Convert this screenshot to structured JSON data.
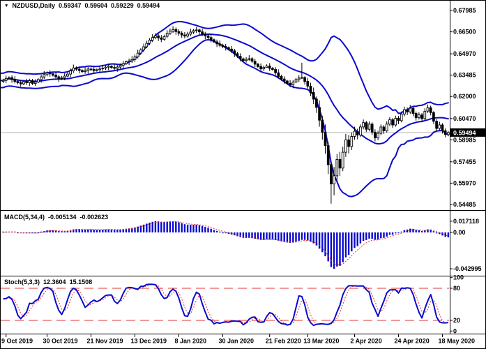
{
  "chart_data": {
    "type": "candlestick",
    "symbol": "NZDUSD",
    "timeframe": "Daily",
    "symbol_label": "NZDUSD,Daily",
    "ohlc_display": {
      "open": "0.59347",
      "high": "0.59604",
      "low": "0.59229",
      "close": "0.59494"
    },
    "current_price": 0.59494,
    "current_price_label": "0.59494",
    "y_axis": {
      "labels": [
        "0.67985",
        "0.66500",
        "0.64970",
        "0.63485",
        "0.62000",
        "0.60470",
        "0.58985",
        "0.57455",
        "0.55970",
        "0.54485"
      ]
    },
    "x_axis": {
      "labels": [
        {
          "text": "9 Oct 2019",
          "bar": 1
        },
        {
          "text": "30 Oct 2019",
          "bar": 15
        },
        {
          "text": "21 Nov 2019",
          "bar": 30
        },
        {
          "text": "13 Dec 2019",
          "bar": 45
        },
        {
          "text": "8 Jan 2020",
          "bar": 60
        },
        {
          "text": "30 Jan 2020",
          "bar": 75
        },
        {
          "text": "21 Feb 2020",
          "bar": 91
        },
        {
          "text": "13 Mar 2020",
          "bar": 104
        },
        {
          "text": "2 Apr 2020",
          "bar": 120
        },
        {
          "text": "24 Apr 2020",
          "bar": 135
        },
        {
          "text": "18 May 2020",
          "bar": 150
        }
      ]
    },
    "bollinger": {
      "period": 20,
      "deviation": 2
    },
    "candles": [
      [
        0.6305,
        0.6324,
        0.6294,
        0.6312
      ],
      [
        0.6312,
        0.6346,
        0.6294,
        0.6326
      ],
      [
        0.6326,
        0.634,
        0.6318,
        0.6331
      ],
      [
        0.6331,
        0.6347,
        0.6296,
        0.6318
      ],
      [
        0.6318,
        0.6342,
        0.6291,
        0.6305
      ],
      [
        0.6305,
        0.6316,
        0.6284,
        0.6296
      ],
      [
        0.6296,
        0.6314,
        0.6268,
        0.6288
      ],
      [
        0.6288,
        0.631,
        0.6279,
        0.6302
      ],
      [
        0.6302,
        0.6324,
        0.628,
        0.6296
      ],
      [
        0.6296,
        0.6324,
        0.6272,
        0.631
      ],
      [
        0.631,
        0.6322,
        0.628,
        0.6291
      ],
      [
        0.6291,
        0.632,
        0.6273,
        0.63
      ],
      [
        0.63,
        0.6327,
        0.6292,
        0.6318
      ],
      [
        0.6318,
        0.6352,
        0.6296,
        0.6336
      ],
      [
        0.6336,
        0.6376,
        0.6322,
        0.6352
      ],
      [
        0.6352,
        0.6375,
        0.634,
        0.6364
      ],
      [
        0.6364,
        0.6382,
        0.6338,
        0.6358
      ],
      [
        0.6358,
        0.6366,
        0.6339,
        0.6348
      ],
      [
        0.6348,
        0.637,
        0.6321,
        0.6337
      ],
      [
        0.6337,
        0.6351,
        0.6301,
        0.6325
      ],
      [
        0.6325,
        0.6343,
        0.6314,
        0.6331
      ],
      [
        0.6331,
        0.6362,
        0.6313,
        0.6342
      ],
      [
        0.6342,
        0.6365,
        0.6334,
        0.6356
      ],
      [
        0.6356,
        0.6394,
        0.6334,
        0.6378
      ],
      [
        0.6378,
        0.6422,
        0.6364,
        0.6398
      ],
      [
        0.6398,
        0.6409,
        0.6378,
        0.639
      ],
      [
        0.639,
        0.6408,
        0.6361,
        0.6381
      ],
      [
        0.6381,
        0.6389,
        0.6364,
        0.6373
      ],
      [
        0.6373,
        0.6402,
        0.6357,
        0.638
      ],
      [
        0.638,
        0.6405,
        0.6356,
        0.6391
      ],
      [
        0.6391,
        0.6403,
        0.6377,
        0.6388
      ],
      [
        0.6388,
        0.6408,
        0.6362,
        0.638
      ],
      [
        0.638,
        0.6395,
        0.6372,
        0.6386
      ],
      [
        0.6386,
        0.6408,
        0.6364,
        0.6392
      ],
      [
        0.6392,
        0.6421,
        0.6378,
        0.6397
      ],
      [
        0.6397,
        0.6415,
        0.6385,
        0.6404
      ],
      [
        0.6404,
        0.6428,
        0.6384,
        0.641
      ],
      [
        0.641,
        0.6418,
        0.6393,
        0.6402
      ],
      [
        0.6402,
        0.6424,
        0.638,
        0.6396
      ],
      [
        0.6396,
        0.6419,
        0.6372,
        0.6405
      ],
      [
        0.6405,
        0.6428,
        0.6394,
        0.6416
      ],
      [
        0.6416,
        0.6448,
        0.6398,
        0.6428
      ],
      [
        0.6428,
        0.645,
        0.642,
        0.6441
      ],
      [
        0.6441,
        0.6464,
        0.6419,
        0.6448
      ],
      [
        0.6448,
        0.6481,
        0.6434,
        0.6457
      ],
      [
        0.6457,
        0.6492,
        0.644,
        0.6476
      ],
      [
        0.6476,
        0.6525,
        0.6465,
        0.6502
      ],
      [
        0.6502,
        0.6536,
        0.649,
        0.6524
      ],
      [
        0.6524,
        0.6568,
        0.6512,
        0.6546
      ],
      [
        0.6546,
        0.6588,
        0.6536,
        0.657
      ],
      [
        0.657,
        0.6605,
        0.6558,
        0.6592
      ],
      [
        0.6592,
        0.6634,
        0.658,
        0.661
      ],
      [
        0.661,
        0.664,
        0.6598,
        0.6622
      ],
      [
        0.6622,
        0.6637,
        0.6586,
        0.6608
      ],
      [
        0.6608,
        0.6628,
        0.6578,
        0.6598
      ],
      [
        0.6598,
        0.663,
        0.6588,
        0.6618
      ],
      [
        0.6618,
        0.6661,
        0.6606,
        0.664
      ],
      [
        0.664,
        0.6673,
        0.6628,
        0.6655
      ],
      [
        0.6655,
        0.6689,
        0.6642,
        0.6666
      ],
      [
        0.6666,
        0.668,
        0.663,
        0.6652
      ],
      [
        0.6652,
        0.6668,
        0.6622,
        0.6641
      ],
      [
        0.6641,
        0.6655,
        0.6608,
        0.6628
      ],
      [
        0.6628,
        0.6648,
        0.6604,
        0.662
      ],
      [
        0.662,
        0.665,
        0.661,
        0.6634
      ],
      [
        0.6634,
        0.6672,
        0.662,
        0.6648
      ],
      [
        0.6648,
        0.667,
        0.6636,
        0.6658
      ],
      [
        0.6658,
        0.6684,
        0.6642,
        0.6663
      ],
      [
        0.6663,
        0.6672,
        0.6631,
        0.665
      ],
      [
        0.665,
        0.6672,
        0.662,
        0.6636
      ],
      [
        0.6636,
        0.665,
        0.6598,
        0.6622
      ],
      [
        0.6622,
        0.6634,
        0.6599,
        0.661
      ],
      [
        0.661,
        0.663,
        0.6577,
        0.6595
      ],
      [
        0.6595,
        0.6604,
        0.6572,
        0.658
      ],
      [
        0.658,
        0.6596,
        0.6544,
        0.6566
      ],
      [
        0.6566,
        0.659,
        0.6542,
        0.6556
      ],
      [
        0.6556,
        0.6567,
        0.6536,
        0.6548
      ],
      [
        0.6548,
        0.6566,
        0.652,
        0.654
      ],
      [
        0.654,
        0.6548,
        0.6521,
        0.653
      ],
      [
        0.653,
        0.6552,
        0.6502,
        0.6518
      ],
      [
        0.6518,
        0.6532,
        0.6474,
        0.6498
      ],
      [
        0.6498,
        0.651,
        0.6469,
        0.648
      ],
      [
        0.648,
        0.65,
        0.6444,
        0.6462
      ],
      [
        0.6462,
        0.6471,
        0.6442,
        0.645
      ],
      [
        0.645,
        0.6474,
        0.6436,
        0.6458
      ],
      [
        0.6458,
        0.6487,
        0.6449,
        0.6463
      ],
      [
        0.6463,
        0.6474,
        0.6433,
        0.6445
      ],
      [
        0.6445,
        0.6463,
        0.6405,
        0.6425
      ],
      [
        0.6425,
        0.6433,
        0.6399,
        0.6408
      ],
      [
        0.6408,
        0.643,
        0.6376,
        0.6392
      ],
      [
        0.6392,
        0.6416,
        0.6378,
        0.6402
      ],
      [
        0.6402,
        0.6424,
        0.6401,
        0.6412
      ],
      [
        0.6412,
        0.6432,
        0.6378,
        0.6396
      ],
      [
        0.6396,
        0.6405,
        0.638,
        0.6388
      ],
      [
        0.6388,
        0.6404,
        0.6349,
        0.6365
      ],
      [
        0.6365,
        0.6389,
        0.6326,
        0.634
      ],
      [
        0.634,
        0.6351,
        0.631,
        0.6322
      ],
      [
        0.6322,
        0.634,
        0.6288,
        0.6308
      ],
      [
        0.6308,
        0.6316,
        0.6283,
        0.6292
      ],
      [
        0.6292,
        0.6314,
        0.6265,
        0.6281
      ],
      [
        0.6281,
        0.6314,
        0.6257,
        0.63
      ],
      [
        0.63,
        0.633,
        0.6293,
        0.6318
      ],
      [
        0.6318,
        0.6348,
        0.63,
        0.6328
      ],
      [
        0.6328,
        0.6435,
        0.6323,
        0.6332
      ],
      [
        0.6332,
        0.6341,
        0.6283,
        0.6305
      ],
      [
        0.6305,
        0.6329,
        0.6256,
        0.6272
      ],
      [
        0.6272,
        0.6296,
        0.6202,
        0.6228
      ],
      [
        0.6228,
        0.6262,
        0.6148,
        0.6182
      ],
      [
        0.6182,
        0.62,
        0.6086,
        0.6124
      ],
      [
        0.6124,
        0.6172,
        0.599,
        0.6035
      ],
      [
        0.6035,
        0.6066,
        0.59,
        0.5952
      ],
      [
        0.5952,
        0.6005,
        0.5802,
        0.5858
      ],
      [
        0.5858,
        0.5884,
        0.566,
        0.5726
      ],
      [
        0.5726,
        0.575,
        0.5455,
        0.5592
      ],
      [
        0.5592,
        0.571,
        0.5512,
        0.5648
      ],
      [
        0.5648,
        0.58,
        0.561,
        0.5762
      ],
      [
        0.5762,
        0.5815,
        0.5648,
        0.5702
      ],
      [
        0.5702,
        0.585,
        0.568,
        0.5812
      ],
      [
        0.5812,
        0.594,
        0.578,
        0.5898
      ],
      [
        0.5898,
        0.5932,
        0.5804,
        0.5852
      ],
      [
        0.5852,
        0.595,
        0.5828,
        0.5922
      ],
      [
        0.5922,
        0.599,
        0.59,
        0.5958
      ],
      [
        0.5958,
        0.5976,
        0.5902,
        0.5932
      ],
      [
        0.5932,
        0.6006,
        0.5918,
        0.5988
      ],
      [
        0.5988,
        0.604,
        0.5972,
        0.6018
      ],
      [
        0.6018,
        0.603,
        0.5952,
        0.5972
      ],
      [
        0.5972,
        0.6026,
        0.5958,
        0.6008
      ],
      [
        0.6008,
        0.602,
        0.5932,
        0.5952
      ],
      [
        0.5952,
        0.5972,
        0.5888,
        0.5912
      ],
      [
        0.5912,
        0.5962,
        0.5896,
        0.5944
      ],
      [
        0.5944,
        0.6006,
        0.593,
        0.5988
      ],
      [
        0.5988,
        0.6,
        0.594,
        0.5962
      ],
      [
        0.5962,
        0.6028,
        0.595,
        0.6008
      ],
      [
        0.6008,
        0.6056,
        0.5994,
        0.6038
      ],
      [
        0.6038,
        0.605,
        0.5982,
        0.6002
      ],
      [
        0.6002,
        0.6066,
        0.599,
        0.6048
      ],
      [
        0.6048,
        0.6064,
        0.6008,
        0.6032
      ],
      [
        0.6032,
        0.6096,
        0.602,
        0.6078
      ],
      [
        0.6078,
        0.613,
        0.6062,
        0.6108
      ],
      [
        0.6108,
        0.6124,
        0.607,
        0.6092
      ],
      [
        0.6092,
        0.6142,
        0.608,
        0.6118
      ],
      [
        0.6118,
        0.613,
        0.6062,
        0.6082
      ],
      [
        0.6082,
        0.6096,
        0.6032,
        0.6052
      ],
      [
        0.6052,
        0.609,
        0.604,
        0.6072
      ],
      [
        0.6072,
        0.6086,
        0.6024,
        0.6046
      ],
      [
        0.6046,
        0.6118,
        0.6036,
        0.6098
      ],
      [
        0.6098,
        0.6144,
        0.6086,
        0.6122
      ],
      [
        0.6122,
        0.6136,
        0.6068,
        0.6088
      ],
      [
        0.6088,
        0.6098,
        0.6008,
        0.6028
      ],
      [
        0.6028,
        0.6042,
        0.5956,
        0.5978
      ],
      [
        0.5978,
        0.6024,
        0.5964,
        0.6002
      ],
      [
        0.6002,
        0.6014,
        0.5942,
        0.5962
      ],
      [
        0.5962,
        0.5978,
        0.5916,
        0.5936
      ],
      [
        0.59347,
        0.59604,
        0.59229,
        0.59494
      ]
    ],
    "indicators": [
      {
        "id": "macd",
        "label": "MACD(5,34,4)",
        "value_main": "-0.005134",
        "value_signal": "-0.002623",
        "params": {
          "fast": 5,
          "slow": 34,
          "signal": 4
        },
        "axis_labels": [
          {
            "text": "0.017118",
            "at": "max"
          },
          {
            "text": "0.00",
            "at": "zero"
          },
          {
            "text": "-0.042995",
            "at": "min"
          }
        ]
      },
      {
        "id": "stochastic",
        "label": "Stoch(5,3,3)",
        "value_k": "12.3604",
        "value_d": "15.1508",
        "params": {
          "k": 5,
          "d": 3,
          "slowing": 3
        },
        "levels": [
          80,
          20
        ],
        "axis_labels": [
          "100",
          "80",
          "20",
          "0"
        ]
      }
    ],
    "colors": {
      "background": "#ffffff",
      "border": "#000000",
      "bull_body": "#ffffff",
      "bear_body": "#000000",
      "candle_outline": "#000000",
      "bands": "#0a0acd",
      "macd_histogram": "#0a0acd",
      "macd_signal": "#e03535",
      "stoch_k": "#0a0acd",
      "stoch_d": "#e03535",
      "stoch_levels": "#e03535",
      "current_price_line": "#b9b9b9",
      "current_price_bg": "#000000",
      "current_price_fg": "#ffffff",
      "text": "#000000"
    }
  }
}
